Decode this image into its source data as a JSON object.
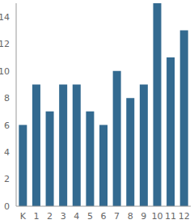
{
  "chart_data": {
    "type": "bar",
    "categories": [
      "K",
      "1",
      "2",
      "3",
      "4",
      "5",
      "6",
      "7",
      "8",
      "9",
      "10",
      "11",
      "12"
    ],
    "values": [
      6,
      9,
      7,
      9,
      9,
      7,
      6,
      10,
      8,
      9,
      15,
      11,
      13
    ],
    "color": "#336a90",
    "ylim": [
      0,
      15
    ],
    "yticks": [
      0,
      2,
      4,
      6,
      8,
      10,
      12,
      14
    ],
    "grid": false
  }
}
